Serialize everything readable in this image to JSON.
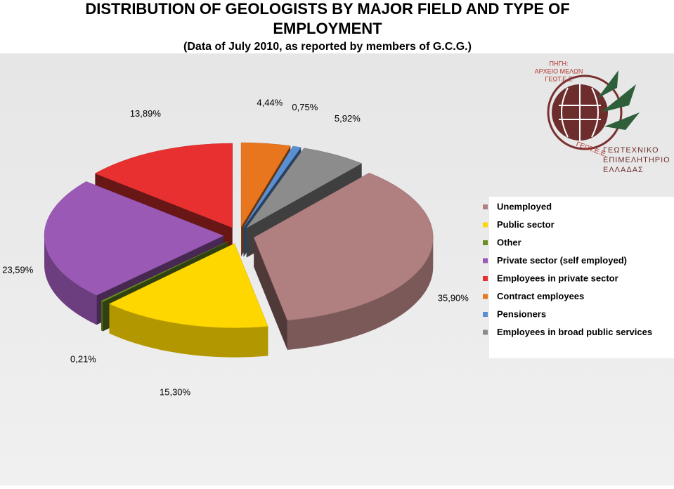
{
  "chart_data": {
    "type": "pie",
    "title": "DISTRIBUTION OF GEOLOGISTS BY MAJOR FIELD AND TYPE OF EMPLOYMENT",
    "subtitle": "(Data of July 2010, as reported by members of G.C.G.)",
    "categories": [
      "Unemployed",
      "Public sector",
      "Other",
      "Private sector (self employed)",
      "Employees in private sector",
      "Contract employees",
      "Pensioners",
      "Employees in broad public services"
    ],
    "values": [
      35.9,
      15.3,
      0.21,
      23.59,
      13.89,
      4.44,
      0.75,
      5.92
    ],
    "value_labels": [
      "35,90%",
      "15,30%",
      "0,21%",
      "23,59%",
      "13,89%",
      "4,44%",
      "0,75%",
      "5,92%"
    ],
    "colors": [
      "#b07f7f",
      "#ffd700",
      "#6b8e23",
      "#9b59b6",
      "#e83030",
      "#e8761e",
      "#5b8fd4",
      "#8c8c8c"
    ],
    "legend": "right"
  },
  "logo": {
    "source": [
      "ΠΗΓΗ:",
      "ΑΡΧΕΙΟ ΜΕΛΩΝ",
      "ΓΕΩΤ.Ε.Ε"
    ],
    "ring": "ΓΕΩΤ.Ε.Ε.",
    "name": [
      "ΓΕΩΤΕΧΝΙΚΟ",
      "ΕΠΙΜΕΛΗΤΗΡΙΟ",
      "ΕΛΛΑΔΑΣ"
    ]
  }
}
